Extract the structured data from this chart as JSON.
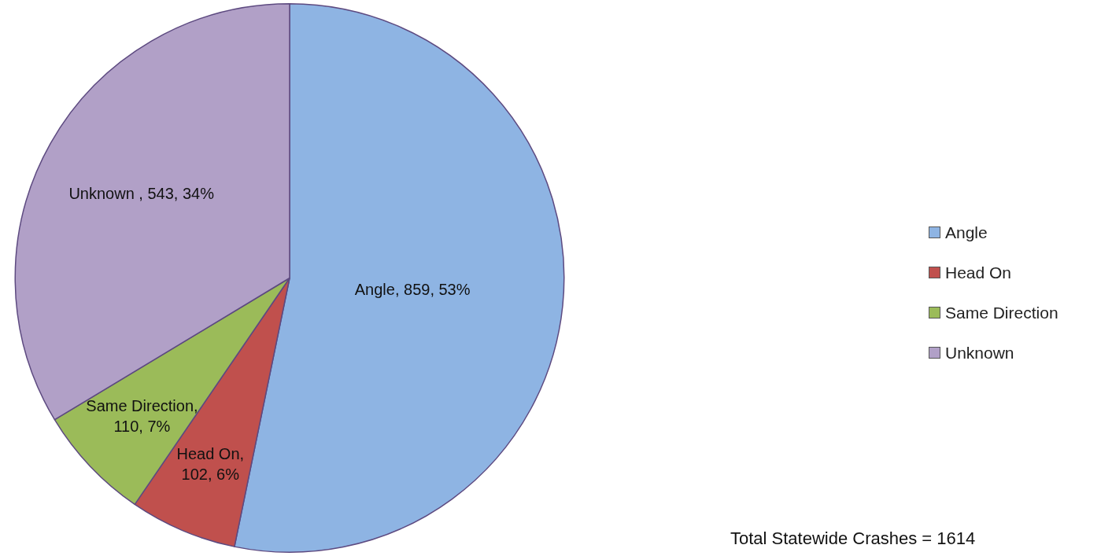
{
  "chart_data": {
    "type": "pie",
    "categories": [
      "Angle",
      "Head On",
      "Same Direction",
      "Unknown"
    ],
    "values": [
      859,
      102,
      110,
      543
    ],
    "colors": [
      "#8eb4e3",
      "#c0504d",
      "#9bbb59",
      "#b1a0c7"
    ],
    "value_labels": [
      "Angle, 859, 53%",
      "Head On, 102, 6%",
      "Same Direction, 110, 7%",
      "Unknown , 543, 34%"
    ],
    "legend": "right",
    "annotations": [
      "Total Statewide Crashes = 1614"
    ]
  }
}
